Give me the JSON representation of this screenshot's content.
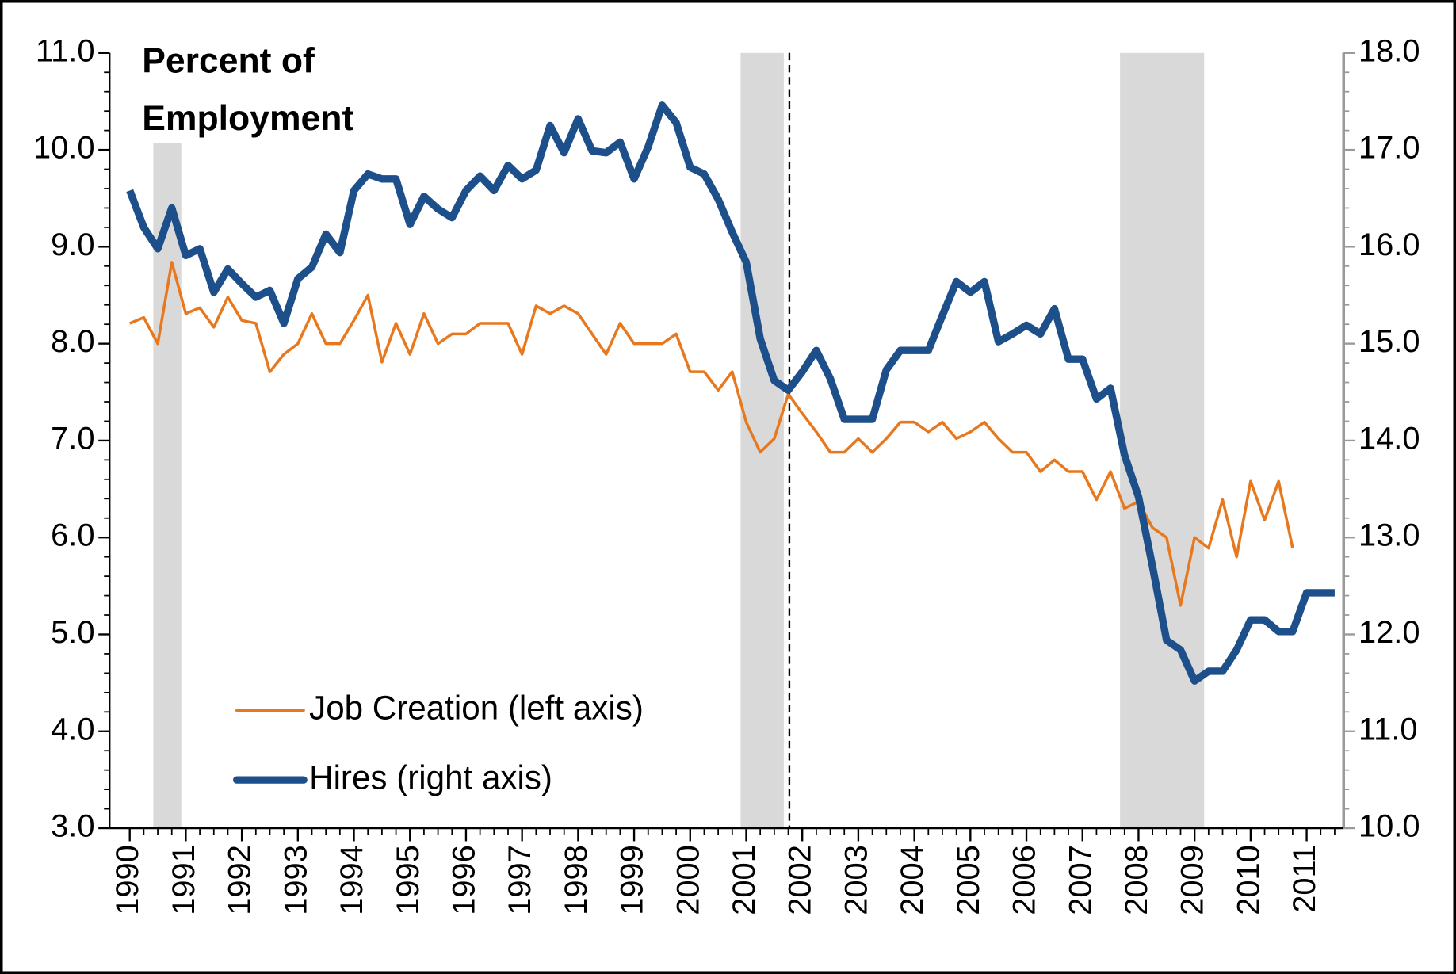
{
  "chart_data": {
    "type": "line",
    "title_lines": [
      "Percent of",
      "Employment"
    ],
    "x": [
      1990,
      1990.25,
      1990.5,
      1990.75,
      1991,
      1991.25,
      1991.5,
      1991.75,
      1992,
      1992.25,
      1992.5,
      1992.75,
      1993,
      1993.25,
      1993.5,
      1993.75,
      1994,
      1994.25,
      1994.5,
      1994.75,
      1995,
      1995.25,
      1995.5,
      1995.75,
      1996,
      1996.25,
      1996.5,
      1996.75,
      1997,
      1997.25,
      1997.5,
      1997.75,
      1998,
      1998.25,
      1998.5,
      1998.75,
      1999,
      1999.25,
      1999.5,
      1999.75,
      2000,
      2000.25,
      2000.5,
      2000.75,
      2001,
      2001.25,
      2001.5,
      2001.75,
      2002,
      2002.25,
      2002.5,
      2002.75,
      2003,
      2003.25,
      2003.5,
      2003.75,
      2004,
      2004.25,
      2004.5,
      2004.75,
      2005,
      2005.25,
      2005.5,
      2005.75,
      2006,
      2006.25,
      2006.5,
      2006.75,
      2007,
      2007.25,
      2007.5,
      2007.75,
      2008,
      2008.25,
      2008.5,
      2008.75,
      2009,
      2009.25,
      2009.5,
      2009.75,
      2010,
      2010.25,
      2010.5,
      2010.75,
      2011,
      2011.25,
      2011.5
    ],
    "series": [
      {
        "name": "Job Creation (left axis)",
        "color": "#e8781e",
        "width": 3,
        "values": [
          8.21,
          8.27,
          8.0,
          8.84,
          8.31,
          8.37,
          8.17,
          8.48,
          8.24,
          8.21,
          7.71,
          7.89,
          8.0,
          8.31,
          8.0,
          8.0,
          8.24,
          8.5,
          7.81,
          8.21,
          7.89,
          8.31,
          8.0,
          8.1,
          8.1,
          8.21,
          8.21,
          8.21,
          7.89,
          8.39,
          8.31,
          8.39,
          8.31,
          8.1,
          7.89,
          8.21,
          8.0,
          8.0,
          8.0,
          8.1,
          7.71,
          7.71,
          7.52,
          7.71,
          7.19,
          6.88,
          7.02,
          7.48,
          7.28,
          7.09,
          6.88,
          6.88,
          7.02,
          6.88,
          7.02,
          7.19,
          7.19,
          7.09,
          7.19,
          7.02,
          7.09,
          7.19,
          7.02,
          6.88,
          6.88,
          6.68,
          6.8,
          6.68,
          6.68,
          6.39,
          6.68,
          6.3,
          6.37,
          6.1,
          6.0,
          5.3,
          6.0,
          5.89,
          6.39,
          5.8,
          6.58,
          6.18,
          6.58,
          5.89,
          null,
          null,
          null
        ]
      },
      {
        "name": "Hires (right axis)",
        "color": "#1d4f8b",
        "width": 8,
        "axis": "y2",
        "values": [
          16.58,
          16.2,
          15.98,
          16.4,
          15.91,
          15.98,
          15.53,
          15.77,
          15.62,
          15.48,
          15.55,
          15.21,
          15.67,
          15.79,
          16.13,
          15.94,
          16.58,
          16.75,
          16.7,
          16.7,
          16.23,
          16.52,
          16.39,
          16.3,
          16.58,
          16.73,
          16.58,
          16.84,
          16.7,
          16.79,
          17.25,
          16.97,
          17.32,
          16.99,
          16.97,
          17.08,
          16.7,
          17.03,
          17.46,
          17.28,
          16.82,
          16.75,
          16.49,
          16.15,
          15.84,
          15.05,
          14.62,
          14.52,
          14.71,
          14.93,
          14.64,
          14.22,
          14.22,
          14.22,
          14.73,
          14.93,
          14.93,
          14.93,
          15.29,
          15.64,
          15.53,
          15.64,
          15.02,
          15.1,
          15.19,
          15.1,
          15.36,
          14.84,
          14.84,
          14.43,
          14.54,
          13.85,
          13.42,
          12.7,
          11.94,
          11.84,
          11.52,
          11.62,
          11.62,
          11.84,
          12.15,
          12.15,
          12.03,
          12.03,
          12.43,
          12.43,
          12.43
        ]
      }
    ],
    "shaded_spans": [
      [
        1990.42,
        1990.92
      ],
      [
        2000.9,
        2001.67
      ],
      [
        2007.67,
        2009.17
      ]
    ],
    "shade_color": "#d9d9d9",
    "vline": 2001.77,
    "xlim": [
      1989.64,
      2011.66
    ],
    "xticks": [
      1990,
      1991,
      1992,
      1993,
      1994,
      1995,
      1996,
      1997,
      1998,
      1999,
      2000,
      2001,
      2002,
      2003,
      2004,
      2005,
      2006,
      2007,
      2008,
      2009,
      2010,
      2011
    ],
    "ylim": [
      3,
      11
    ],
    "yticks": [
      {
        "value": 3,
        "label": "3.0"
      },
      {
        "value": 4,
        "label": "4.0"
      },
      {
        "value": 5,
        "label": "5.0"
      },
      {
        "value": 6,
        "label": "6.0"
      },
      {
        "value": 7,
        "label": "7.0"
      },
      {
        "value": 8,
        "label": "8.0"
      },
      {
        "value": 9,
        "label": "9.0"
      },
      {
        "value": 10,
        "label": "10.0"
      },
      {
        "value": 11,
        "label": "11.0"
      }
    ],
    "y2lim": [
      10,
      18
    ],
    "y2ticks": [
      {
        "value": 10,
        "label": "10.0"
      },
      {
        "value": 11,
        "label": "11.0"
      },
      {
        "value": 12,
        "label": "12.0"
      },
      {
        "value": 13,
        "label": "13.0"
      },
      {
        "value": 14,
        "label": "14.0"
      },
      {
        "value": 15,
        "label": "15.0"
      },
      {
        "value": 16,
        "label": "16.0"
      },
      {
        "value": 17,
        "label": "17.0"
      },
      {
        "value": 18,
        "label": "18.0"
      }
    ],
    "legend": "lower-left"
  }
}
